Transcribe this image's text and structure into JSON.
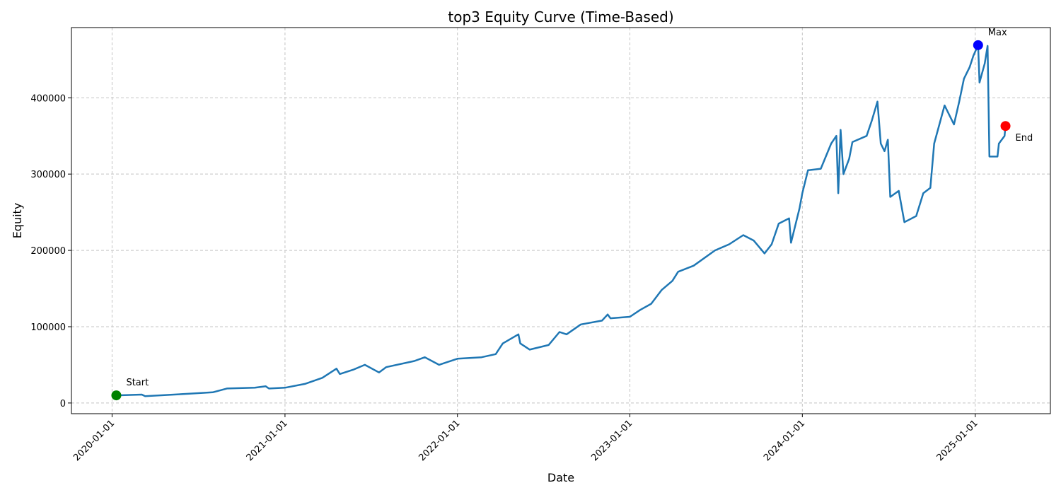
{
  "chart_data": {
    "type": "line",
    "title": "top3 Equity Curve (Time-Based)",
    "x_label": "Date",
    "y_label": "Equity",
    "xlim": [
      "2019-10-07",
      "2025-06-09"
    ],
    "xticks": [
      "2020-01-01",
      "2021-01-01",
      "2022-01-01",
      "2023-01-01",
      "2024-01-01",
      "2025-01-01"
    ],
    "ylim": [
      -14000,
      492000
    ],
    "yticks": [
      0,
      100000,
      200000,
      300000,
      400000
    ],
    "grid": true,
    "series": [
      {
        "color": "#1f77b4",
        "x": [
          "2020-01-10",
          "2020-03-04",
          "2020-03-11",
          "2020-06-09",
          "2020-08-01",
          "2020-08-31",
          "2020-10-29",
          "2020-11-21",
          "2020-11-28",
          "2021-01-01",
          "2021-02-12",
          "2021-03-21",
          "2021-04-20",
          "2021-04-27",
          "2021-05-27",
          "2021-06-19",
          "2021-07-19",
          "2021-08-03",
          "2021-10-02",
          "2021-10-24",
          "2021-11-23",
          "2022-01-01",
          "2022-02-21",
          "2022-03-23",
          "2022-04-07",
          "2022-05-10",
          "2022-05-14",
          "2022-06-03",
          "2022-07-13",
          "2022-08-05",
          "2022-08-20",
          "2022-09-19",
          "2022-11-03",
          "2022-11-15",
          "2022-11-21",
          "2023-01-01",
          "2023-01-23",
          "2023-02-15",
          "2023-03-09",
          "2023-04-01",
          "2023-04-13",
          "2023-05-16",
          "2023-06-30",
          "2023-07-30",
          "2023-08-29",
          "2023-09-20",
          "2023-10-13",
          "2023-10-28",
          "2023-11-12",
          "2023-12-04",
          "2023-12-08",
          "2023-12-26",
          "2024-01-01",
          "2024-01-13",
          "2024-02-09",
          "2024-03-02",
          "2024-03-13",
          "2024-03-17",
          "2024-03-22",
          "2024-03-28",
          "2024-04-09",
          "2024-04-16",
          "2024-05-16",
          "2024-05-27",
          "2024-06-08",
          "2024-06-15",
          "2024-06-23",
          "2024-06-30",
          "2024-07-05",
          "2024-07-23",
          "2024-08-04",
          "2024-08-29",
          "2024-09-13",
          "2024-09-28",
          "2024-10-06",
          "2024-10-28",
          "2024-11-17",
          "2024-11-28",
          "2024-12-08",
          "2024-12-20",
          "2024-12-28",
          "2025-01-07",
          "2025-01-10",
          "2025-01-21",
          "2025-01-27",
          "2025-01-31",
          "2025-02-17",
          "2025-02-20",
          "2025-03-04",
          "2025-03-06"
        ],
        "values": [
          10000,
          11000,
          9000,
          12000,
          14000,
          19000,
          20000,
          22000,
          19000,
          20000,
          25000,
          33000,
          45000,
          38000,
          44000,
          50000,
          40000,
          47000,
          55000,
          60000,
          50000,
          58000,
          60000,
          64000,
          78000,
          90000,
          78000,
          70000,
          76000,
          93000,
          90000,
          103000,
          108000,
          116000,
          111000,
          113000,
          122000,
          130000,
          148000,
          160000,
          172000,
          180000,
          200000,
          208000,
          220000,
          213000,
          196000,
          208000,
          235000,
          242000,
          210000,
          255000,
          275000,
          305000,
          307000,
          340000,
          350000,
          275000,
          358000,
          300000,
          320000,
          342000,
          350000,
          370000,
          395000,
          340000,
          330000,
          345000,
          270000,
          278000,
          237000,
          245000,
          275000,
          282000,
          340000,
          390000,
          365000,
          395000,
          425000,
          440000,
          455000,
          469000,
          420000,
          445000,
          468000,
          323000,
          323000,
          340000,
          350000,
          363000
        ]
      }
    ],
    "markers": [
      {
        "label": "Start",
        "x": "2020-01-10",
        "value": 10000,
        "color": "green"
      },
      {
        "label": "Max",
        "x": "2025-01-07",
        "value": 469000,
        "color": "blue"
      },
      {
        "label": "End",
        "x": "2025-03-06",
        "value": 363000,
        "color": "red"
      }
    ]
  }
}
